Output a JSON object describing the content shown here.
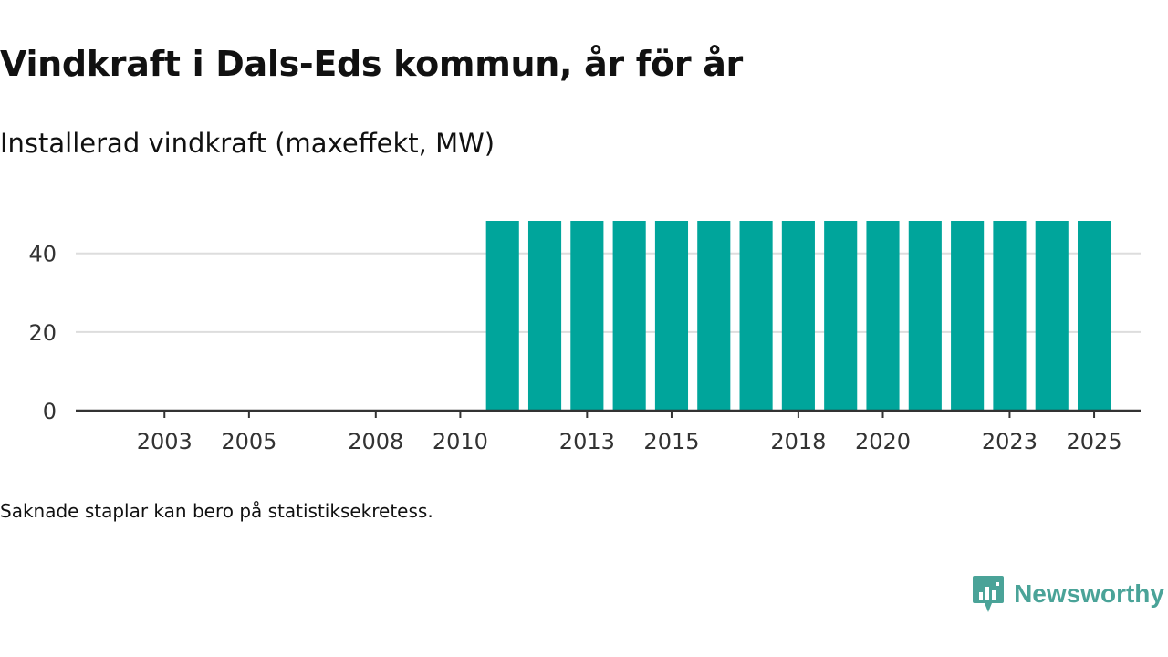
{
  "header": {
    "title": "Vindkraft i Dals-Eds kommun, år för år",
    "subtitle": "Installerad vindkraft (maxeffekt, MW)"
  },
  "footnote": "Saknade staplar kan bero på statistiksekretess.",
  "brand": {
    "name": "Newsworthy",
    "icon": "newsworthy-logo-icon"
  },
  "colors": {
    "bar": "#00a59b",
    "grid": "#dddddd",
    "axis": "#333333",
    "text": "#333333",
    "brand": "#4aa398"
  },
  "chart_data": {
    "type": "bar",
    "title": "Vindkraft i Dals-Eds kommun, år för år",
    "ylabel": "Installerad vindkraft (maxeffekt, MW)",
    "xlabel": "",
    "categories": [
      2002,
      2003,
      2004,
      2005,
      2006,
      2007,
      2008,
      2009,
      2010,
      2011,
      2012,
      2013,
      2014,
      2015,
      2016,
      2017,
      2018,
      2019,
      2020,
      2021,
      2022,
      2023,
      2024,
      2025
    ],
    "values": [
      null,
      null,
      null,
      null,
      null,
      null,
      null,
      null,
      null,
      48.3,
      48.3,
      48.3,
      48.3,
      48.3,
      48.3,
      48.3,
      48.3,
      48.3,
      48.3,
      48.3,
      48.3,
      48.3,
      48.3,
      48.3
    ],
    "x_tick_labels": [
      "2003",
      "2005",
      "2008",
      "2010",
      "2013",
      "2015",
      "2018",
      "2020",
      "2023",
      "2025"
    ],
    "y_ticks": [
      0,
      20,
      40
    ],
    "ylim": [
      0,
      48.3
    ],
    "grid": true,
    "legend": "none"
  }
}
